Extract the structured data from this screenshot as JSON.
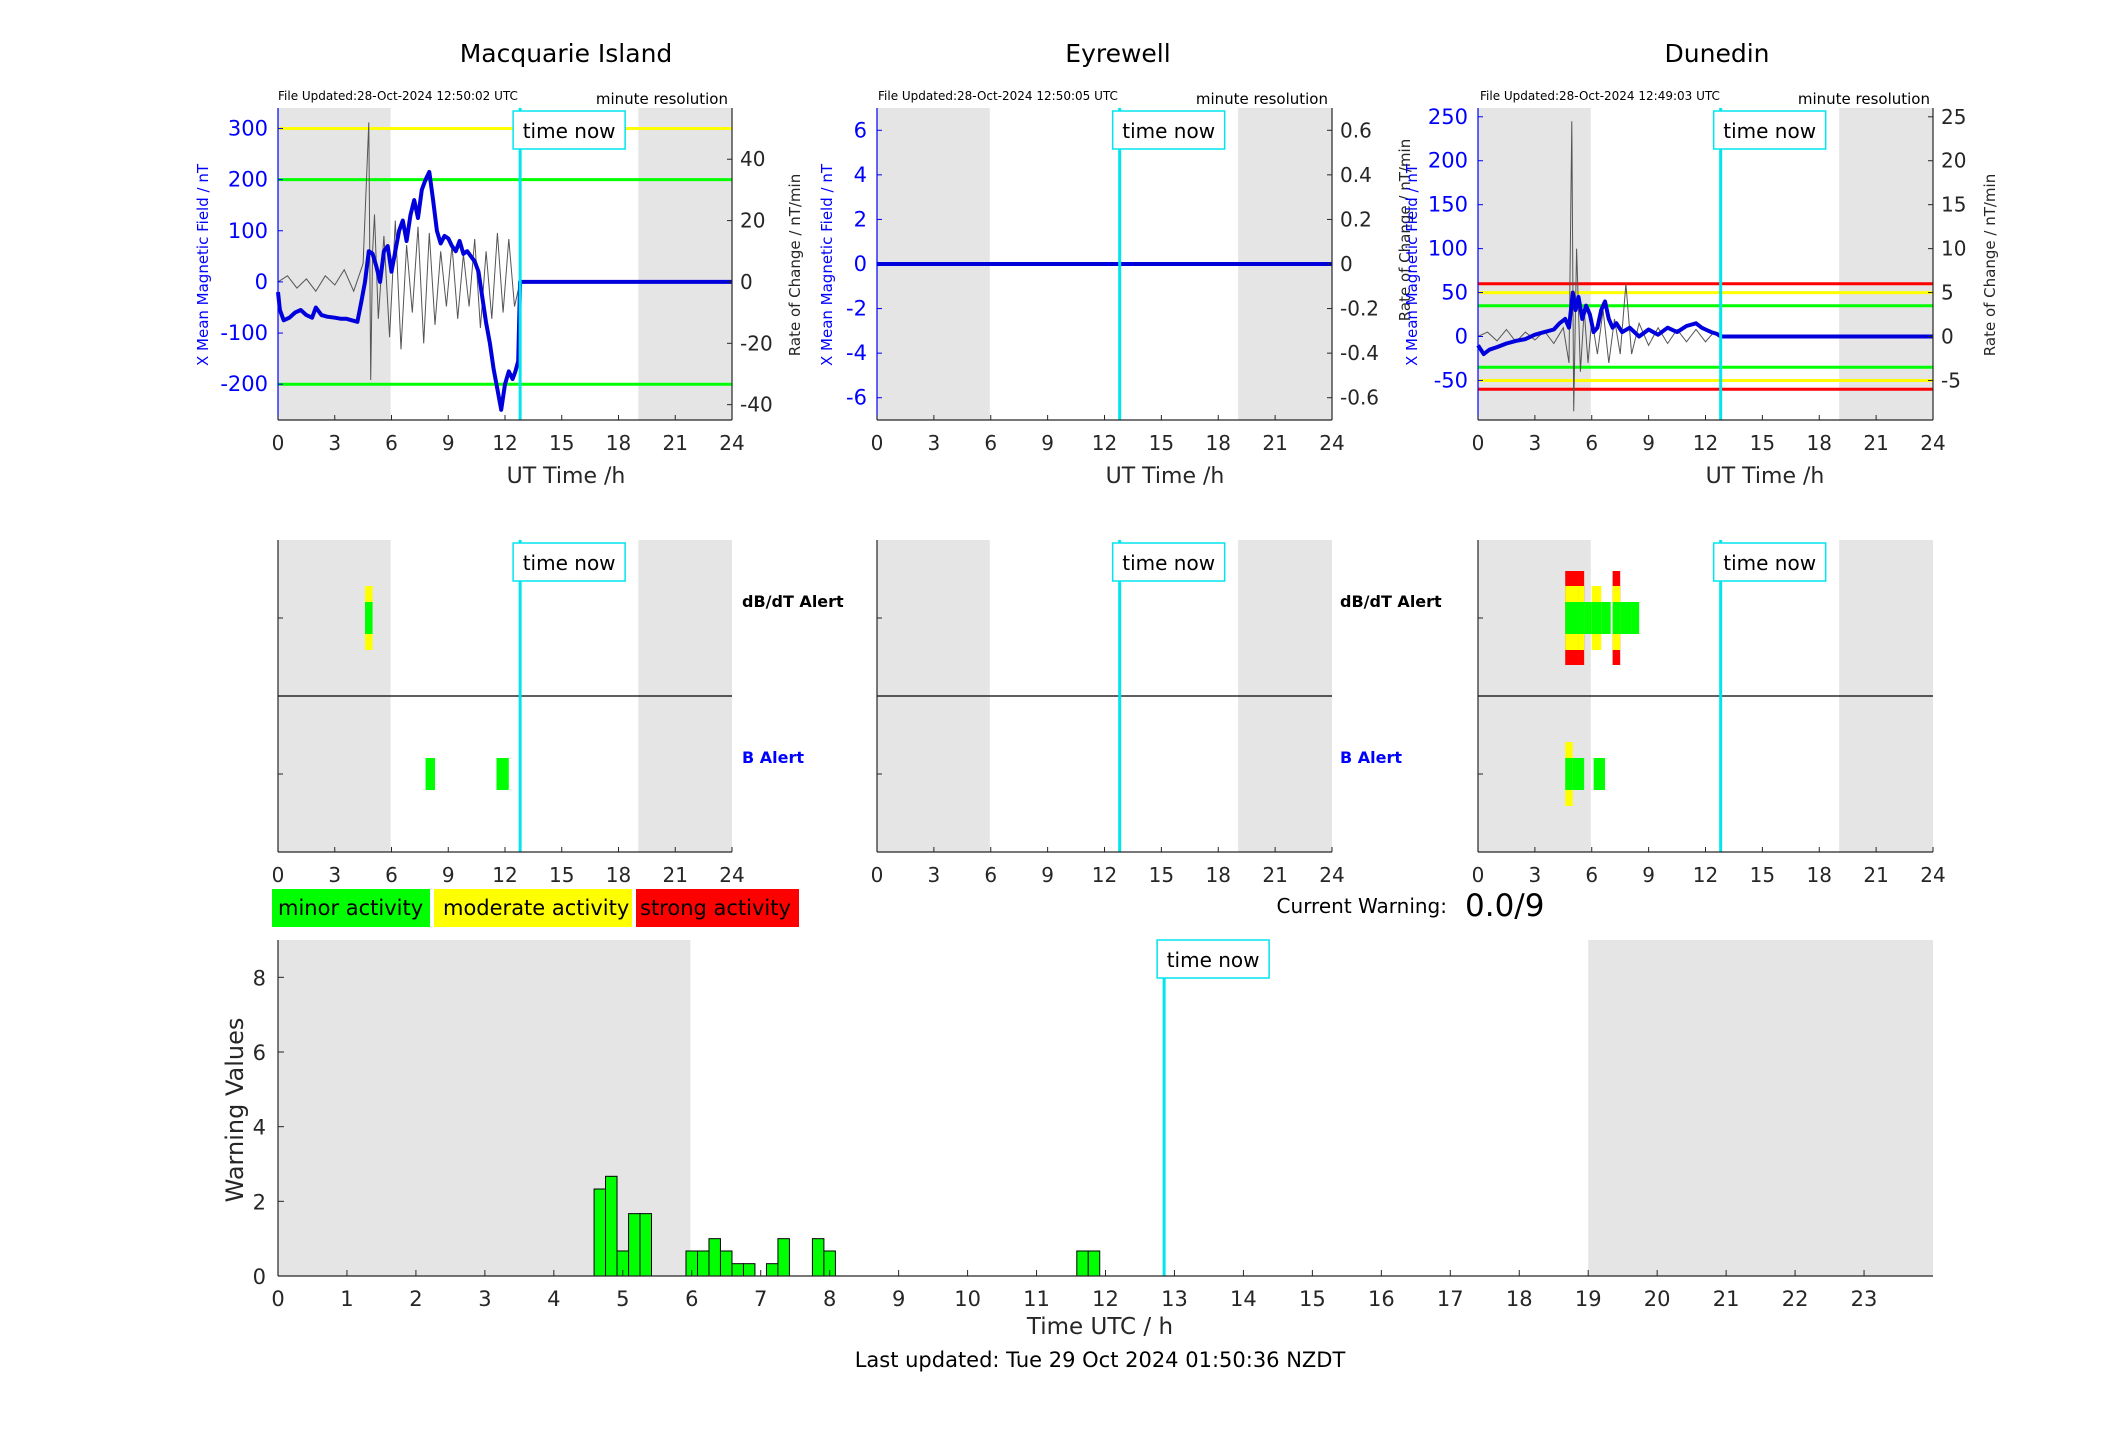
{
  "stations": [
    {
      "id": "mac",
      "title": "Macquarie Island",
      "file_updated": "File Updated:28-Oct-2024 12:50:02 UTC",
      "resolution": "minute resolution",
      "left_ylabel": "X Mean Magnetic Field / nT",
      "right_ylabel": "Rate of Change / nT/min",
      "xlabel": "UT Time /h"
    },
    {
      "id": "eyr",
      "title": "Eyrewell",
      "file_updated": "File Updated:28-Oct-2024 12:50:05 UTC",
      "resolution": "minute resolution",
      "left_ylabel": "X Mean Magnetic Field / nT",
      "right_ylabel": "Rate of Change / nT/min",
      "xlabel": "UT Time /h"
    },
    {
      "id": "dun",
      "title": "Dunedin",
      "file_updated": "File Updated:28-Oct-2024 12:49:03 UTC",
      "resolution": "minute resolution",
      "left_ylabel": "X Mean Magnetic Field / nT",
      "right_ylabel": "Rate of Change / nT/min",
      "xlabel": "UT Time /h"
    }
  ],
  "time_now_label": "time now",
  "alert_labels": {
    "dbdt": "dB/dT Alert",
    "b": "B Alert"
  },
  "legend": [
    {
      "label": "minor activity",
      "color": "#00ff00"
    },
    {
      "label": "moderate activity",
      "color": "#ffff00"
    },
    {
      "label": "strong activity",
      "color": "#ff0000"
    }
  ],
  "current_warning": {
    "label": "Current Warning:",
    "value": "0.0/9"
  },
  "last_updated": "Last updated: Tue 29 Oct 2024 01:50:36 NZDT",
  "colors": {
    "night_shade": "#e5e5e5",
    "time_now": "#00e5ee",
    "field_line": "#0000dd",
    "axis_blue": "#0000ff",
    "rate_line": "#555555",
    "minor": "#00ff00",
    "moderate": "#ffff00",
    "strong": "#ff0000"
  },
  "chart_data": [
    {
      "type": "line",
      "station": "Macquarie Island",
      "xlabel": "UT Time /h",
      "x_ticks": [
        0,
        3,
        6,
        9,
        12,
        15,
        18,
        21,
        24
      ],
      "xlim": [
        0,
        24
      ],
      "ylabel": "X Mean Magnetic Field / nT",
      "ylim": [
        -270,
        340
      ],
      "y_ticks": [
        -200,
        -100,
        0,
        100,
        200,
        300
      ],
      "y2label": "Rate of Change / nT/min",
      "y2lim": [
        -45,
        56.7
      ],
      "y2_ticks": [
        -40,
        -20,
        0,
        20,
        40
      ],
      "night_shading": [
        [
          0,
          5.95
        ],
        [
          19.05,
          24
        ]
      ],
      "time_now": 12.8,
      "thresholds": [
        {
          "value": 300,
          "color": "yellow"
        },
        {
          "value": 200,
          "color": "green"
        },
        {
          "value": -200,
          "color": "green"
        }
      ],
      "series": [
        {
          "name": "X Mean Magnetic Field",
          "x": [
            0,
            0.1,
            0.3,
            0.6,
            0.9,
            1.2,
            1.5,
            1.8,
            2.0,
            2.3,
            2.6,
            3.0,
            3.3,
            3.6,
            3.9,
            4.2,
            4.4,
            4.6,
            4.8,
            5.0,
            5.2,
            5.4,
            5.6,
            5.8,
            6.0,
            6.2,
            6.4,
            6.6,
            6.8,
            7.0,
            7.2,
            7.4,
            7.6,
            7.8,
            8.0,
            8.2,
            8.4,
            8.6,
            8.8,
            9.0,
            9.2,
            9.4,
            9.6,
            9.8,
            10.0,
            10.2,
            10.4,
            10.6,
            10.8,
            11.0,
            11.2,
            11.4,
            11.6,
            11.8,
            12.0,
            12.2,
            12.4,
            12.55,
            12.7,
            12.8,
            13,
            16,
            20,
            24
          ],
          "values": [
            -20,
            -55,
            -75,
            -70,
            -60,
            -55,
            -65,
            -70,
            -50,
            -65,
            -68,
            -70,
            -72,
            -72,
            -75,
            -78,
            -40,
            0,
            60,
            55,
            30,
            0,
            60,
            70,
            20,
            60,
            100,
            120,
            80,
            130,
            160,
            125,
            180,
            200,
            215,
            160,
            100,
            75,
            90,
            85,
            70,
            60,
            80,
            55,
            60,
            50,
            40,
            20,
            -30,
            -80,
            -120,
            -170,
            -210,
            -250,
            -200,
            -175,
            -190,
            -175,
            -155,
            0,
            0,
            0,
            0,
            0
          ]
        },
        {
          "name": "Rate of Change",
          "x": [
            0,
            0.5,
            1,
            1.5,
            2,
            2.5,
            3,
            3.5,
            4,
            4.5,
            4.8,
            4.9,
            5.0,
            5.1,
            5.3,
            5.6,
            5.9,
            6.2,
            6.5,
            6.8,
            7.1,
            7.4,
            7.7,
            8.0,
            8.3,
            8.6,
            8.9,
            9.2,
            9.5,
            9.8,
            10.1,
            10.4,
            10.7,
            11.0,
            11.3,
            11.6,
            11.9,
            12.2,
            12.5,
            12.8
          ],
          "values": [
            0,
            2,
            -2,
            1,
            -3,
            2,
            -1,
            4,
            -3,
            6,
            52,
            -32,
            10,
            22,
            -12,
            15,
            -18,
            20,
            -22,
            12,
            -10,
            18,
            -20,
            16,
            -14,
            10,
            -8,
            12,
            -12,
            9,
            -8,
            14,
            -15,
            10,
            -12,
            16,
            -10,
            14,
            -8,
            0
          ]
        }
      ]
    },
    {
      "type": "line",
      "station": "Eyrewell",
      "xlabel": "UT Time /h",
      "x_ticks": [
        0,
        3,
        6,
        9,
        12,
        15,
        18,
        21,
        24
      ],
      "xlim": [
        0,
        24
      ],
      "ylabel": "X Mean Magnetic Field / nT",
      "ylim": [
        -7,
        7
      ],
      "y_ticks": [
        -6,
        -4,
        -2,
        0,
        2,
        4,
        6
      ],
      "y2label": "Rate of Change / nT/min",
      "y2lim": [
        -0.7,
        0.7
      ],
      "y2_ticks": [
        -0.6,
        -0.4,
        -0.2,
        0,
        0.2,
        0.4,
        0.6
      ],
      "night_shading": [
        [
          0,
          5.95
        ],
        [
          19.05,
          24
        ]
      ],
      "time_now": 12.8,
      "thresholds": [],
      "series": [
        {
          "name": "X Mean Magnetic Field",
          "x": [
            0,
            24
          ],
          "values": [
            0,
            0
          ]
        }
      ]
    },
    {
      "type": "line",
      "station": "Dunedin",
      "xlabel": "UT Time /h",
      "x_ticks": [
        0,
        3,
        6,
        9,
        12,
        15,
        18,
        21,
        24
      ],
      "xlim": [
        0,
        24
      ],
      "ylabel": "X Mean Magnetic Field / nT",
      "ylim": [
        -95,
        260
      ],
      "y_ticks": [
        -50,
        0,
        50,
        100,
        150,
        200,
        250
      ],
      "y2label": "Rate of Change / nT/min",
      "y2lim": [
        -9.5,
        26
      ],
      "y2_ticks": [
        -5,
        0,
        5,
        10,
        15,
        20,
        25
      ],
      "night_shading": [
        [
          0,
          5.95
        ],
        [
          19.05,
          24
        ]
      ],
      "time_now": 12.8,
      "thresholds": [
        {
          "value": 60,
          "color": "red"
        },
        {
          "value": 50,
          "color": "yellow"
        },
        {
          "value": 35,
          "color": "green"
        },
        {
          "value": -35,
          "color": "green"
        },
        {
          "value": -50,
          "color": "yellow"
        },
        {
          "value": -60,
          "color": "red"
        }
      ],
      "series": [
        {
          "name": "X Mean Magnetic Field",
          "x": [
            0,
            0.3,
            0.6,
            1.0,
            1.5,
            2.0,
            2.5,
            3.0,
            3.5,
            4.0,
            4.3,
            4.6,
            4.8,
            5.0,
            5.15,
            5.3,
            5.5,
            5.7,
            5.9,
            6.1,
            6.3,
            6.5,
            6.7,
            6.9,
            7.1,
            7.3,
            7.6,
            8.0,
            8.5,
            9.0,
            9.5,
            10.0,
            10.5,
            11.0,
            11.5,
            11.8,
            12.0,
            12.3,
            12.6,
            12.8,
            13,
            16,
            20,
            24
          ],
          "values": [
            -10,
            -20,
            -15,
            -12,
            -8,
            -5,
            -3,
            2,
            5,
            8,
            15,
            20,
            10,
            50,
            30,
            45,
            20,
            35,
            25,
            5,
            10,
            30,
            40,
            20,
            10,
            15,
            5,
            10,
            0,
            8,
            2,
            10,
            5,
            12,
            15,
            10,
            8,
            5,
            3,
            0,
            0,
            0,
            0,
            0
          ]
        },
        {
          "name": "Rate of Change",
          "x": [
            0,
            0.5,
            1,
            1.5,
            2,
            2.5,
            3,
            3.5,
            4,
            4.5,
            4.8,
            4.95,
            5.05,
            5.2,
            5.4,
            5.6,
            5.8,
            6.0,
            6.3,
            6.6,
            6.9,
            7.2,
            7.5,
            7.8,
            8.1,
            8.5,
            9.0,
            9.5,
            10.0,
            10.5,
            11.0,
            11.5,
            12.0,
            12.4,
            12.8
          ],
          "values": [
            0,
            0.5,
            -0.5,
            0.8,
            -0.6,
            0.5,
            -0.4,
            0.6,
            -0.8,
            1.0,
            -3,
            24.5,
            -8.5,
            10,
            -4,
            3,
            -3,
            2,
            -2,
            3,
            -3,
            2,
            -2,
            6,
            -2,
            1.5,
            -1,
            1,
            -0.8,
            0.8,
            -0.6,
            0.8,
            -0.6,
            0.4,
            0
          ]
        }
      ]
    },
    {
      "type": "bar",
      "title": "Warning Values",
      "xlabel": "Time UTC / h",
      "ylabel": "Warning Values",
      "xlim": [
        0,
        24
      ],
      "ylim": [
        0,
        9
      ],
      "x_ticks": [
        0,
        1,
        2,
        3,
        4,
        5,
        6,
        7,
        8,
        9,
        10,
        11,
        12,
        13,
        14,
        15,
        16,
        17,
        18,
        19,
        20,
        21,
        22,
        23
      ],
      "y_ticks": [
        0,
        2,
        4,
        6,
        8
      ],
      "night_shading": [
        [
          0,
          5.98
        ],
        [
          19.0,
          24
        ]
      ],
      "time_now": 12.85,
      "bar_width_h": 0.1667,
      "bars": {
        "x": [
          4.667,
          4.833,
          5.0,
          5.167,
          5.333,
          6.0,
          6.167,
          6.333,
          6.5,
          6.667,
          6.833,
          7.167,
          7.333,
          7.833,
          8.0,
          11.667,
          11.833
        ],
        "values": [
          2.33,
          2.67,
          0.67,
          1.67,
          1.67,
          0.67,
          0.67,
          1.0,
          0.67,
          0.33,
          0.33,
          0.33,
          1.0,
          1.0,
          0.67,
          0.67,
          0.67
        ]
      }
    }
  ],
  "alert_data": [
    {
      "station": "Macquarie Island",
      "xlim": [
        0,
        24
      ],
      "x_ticks": [
        0,
        3,
        6,
        9,
        12,
        15,
        18,
        21,
        24
      ],
      "night_shading": [
        [
          0,
          5.95
        ],
        [
          19.05,
          24
        ]
      ],
      "time_now": 12.8,
      "dbdt": [
        {
          "start": 4.6,
          "end": 5.0,
          "level": 2
        }
      ],
      "b": [
        {
          "start": 7.8,
          "end": 8.3,
          "level": 1
        },
        {
          "start": 11.55,
          "end": 12.2,
          "level": 1
        }
      ]
    },
    {
      "station": "Eyrewell",
      "xlim": [
        0,
        24
      ],
      "x_ticks": [
        0,
        3,
        6,
        9,
        12,
        15,
        18,
        21,
        24
      ],
      "night_shading": [
        [
          0,
          5.95
        ],
        [
          19.05,
          24
        ]
      ],
      "time_now": 12.8,
      "dbdt": [],
      "b": []
    },
    {
      "station": "Dunedin",
      "xlim": [
        0,
        24
      ],
      "x_ticks": [
        0,
        3,
        6,
        9,
        12,
        15,
        18,
        21,
        24
      ],
      "night_shading": [
        [
          0,
          5.95
        ],
        [
          19.05,
          24
        ]
      ],
      "time_now": 12.8,
      "dbdt": [
        {
          "start": 4.6,
          "end": 5.3,
          "level": 3
        },
        {
          "start": 5.3,
          "end": 5.6,
          "level": 3
        },
        {
          "start": 5.6,
          "end": 6.0,
          "level": 1
        },
        {
          "start": 6.0,
          "end": 6.5,
          "level": 2
        },
        {
          "start": 6.5,
          "end": 7.0,
          "level": 1
        },
        {
          "start": 7.1,
          "end": 7.5,
          "level": 3
        },
        {
          "start": 7.5,
          "end": 8.1,
          "level": 1
        },
        {
          "start": 8.1,
          "end": 8.5,
          "level": 1
        }
      ],
      "b": [
        {
          "start": 4.6,
          "end": 5.0,
          "level": 2
        },
        {
          "start": 5.0,
          "end": 5.6,
          "level": 1
        },
        {
          "start": 6.1,
          "end": 6.7,
          "level": 1
        }
      ]
    }
  ]
}
